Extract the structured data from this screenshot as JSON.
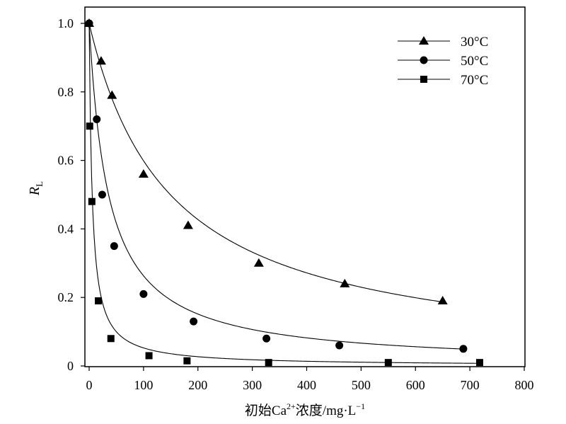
{
  "chart_data": {
    "type": "scatter",
    "xlabel_parts": {
      "prefix": "初始Ca",
      "superscript": "2+",
      "middle": "浓度/mg·L",
      "exponent": "−1"
    },
    "ylabel_parts": {
      "main": "R",
      "subscript": "L"
    },
    "xlim": [
      0,
      800
    ],
    "ylim": [
      0,
      1.0
    ],
    "x_ticks": [
      0,
      100,
      200,
      300,
      400,
      500,
      600,
      700,
      800
    ],
    "x_tick_labels": [
      "0",
      "100",
      "200",
      "300",
      "400",
      "500",
      "600",
      "700",
      "800"
    ],
    "y_ticks": [
      0,
      0.2,
      0.4,
      0.6,
      0.8,
      1.0
    ],
    "y_tick_labels": [
      "0",
      "0.2",
      "0.4",
      "0.6",
      "0.8",
      "1.0"
    ],
    "grid": false,
    "legend_position": "top-right",
    "series": [
      {
        "name": "30°C",
        "marker": "triangle",
        "x": [
          0,
          22,
          42,
          100,
          182,
          312,
          470,
          650
        ],
        "y": [
          1.0,
          0.89,
          0.79,
          0.56,
          0.41,
          0.3,
          0.24,
          0.19
        ],
        "fit_b": 0.0067
      },
      {
        "name": "50°C",
        "marker": "circle",
        "x": [
          0,
          14,
          24,
          46,
          100,
          192,
          326,
          460,
          688
        ],
        "y": [
          1.0,
          0.72,
          0.5,
          0.35,
          0.21,
          0.13,
          0.08,
          0.06,
          0.05
        ],
        "fit_b": 0.028
      },
      {
        "name": "70°C",
        "marker": "square",
        "x": [
          1,
          5,
          17,
          40,
          110,
          180,
          330,
          550,
          718
        ],
        "y": [
          0.7,
          0.48,
          0.19,
          0.08,
          0.03,
          0.015,
          0.01,
          0.01,
          0.01
        ],
        "fit_b": 0.18
      }
    ]
  }
}
